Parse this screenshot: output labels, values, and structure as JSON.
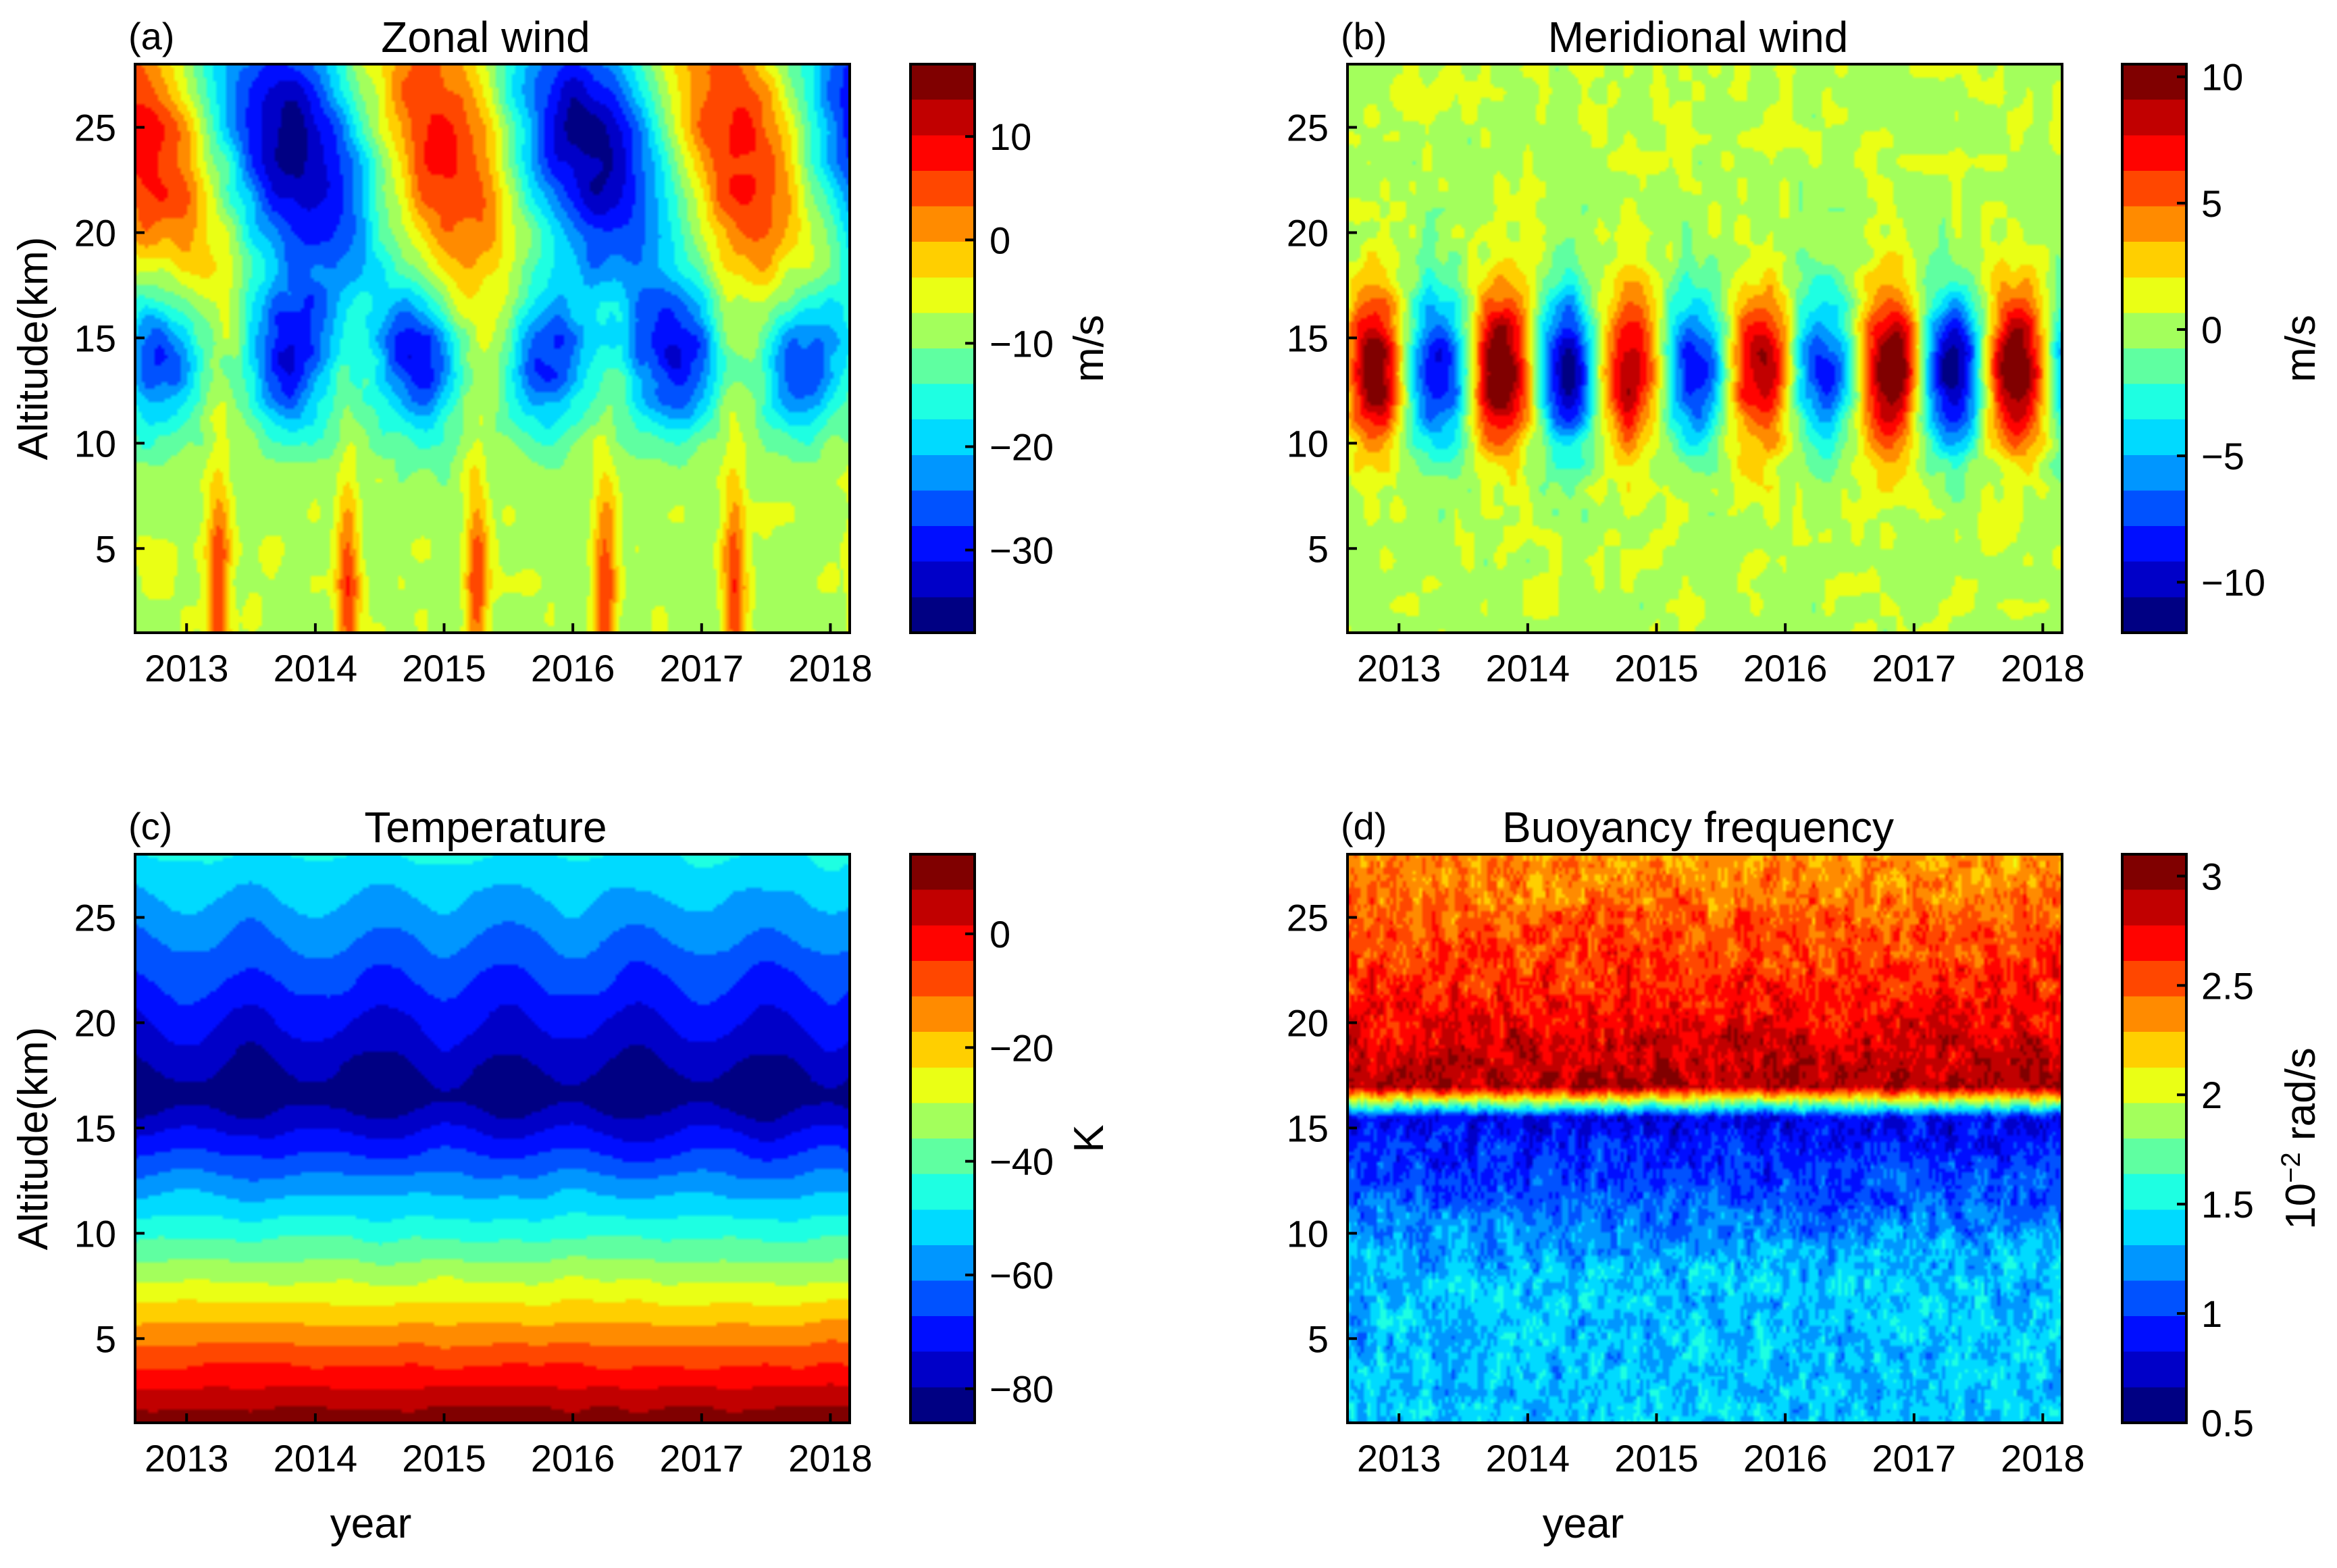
{
  "chart_data": [
    {
      "type": "heatmap",
      "panel_label": "(a)",
      "title": "Zonal wind",
      "xlabel": "",
      "ylabel": "Altitude(km)",
      "x_ticks": [
        "2013",
        "2014",
        "2015",
        "2016",
        "2017",
        "2018"
      ],
      "xlim": [
        2012.6,
        2018.15
      ],
      "y_ticks": [
        5,
        10,
        15,
        20,
        25
      ],
      "ylim": [
        1,
        28
      ],
      "colorbar": {
        "label": "m/s",
        "label_sup": "",
        "label_suffix": "",
        "ticks": [
          10,
          0,
          -10,
          -20,
          -30
        ],
        "tick_labels": [
          "10",
          "0",
          "−10",
          "−20",
          "−30"
        ],
        "range": [
          -38,
          17
        ]
      },
      "field": "zonal",
      "grid": false
    },
    {
      "type": "heatmap",
      "panel_label": "(b)",
      "title": "Meridional wind",
      "xlabel": "",
      "ylabel": "",
      "x_ticks": [
        "2013",
        "2014",
        "2015",
        "2016",
        "2017",
        "2018"
      ],
      "xlim": [
        2012.6,
        2018.15
      ],
      "y_ticks": [
        5,
        10,
        15,
        20,
        25
      ],
      "ylim": [
        1,
        28
      ],
      "colorbar": {
        "label": "m/s",
        "label_sup": "",
        "label_suffix": "",
        "ticks": [
          10,
          5,
          0,
          -5,
          -10
        ],
        "tick_labels": [
          "10",
          "5",
          "0",
          "−5",
          "−10"
        ],
        "range": [
          -12,
          10.5
        ]
      },
      "field": "meridional",
      "grid": false
    },
    {
      "type": "heatmap",
      "panel_label": "(c)",
      "title": "Temperature",
      "xlabel": "year",
      "ylabel": "Altitude(km)",
      "x_ticks": [
        "2013",
        "2014",
        "2015",
        "2016",
        "2017",
        "2018"
      ],
      "xlim": [
        2012.6,
        2018.15
      ],
      "y_ticks": [
        5,
        10,
        15,
        20,
        25
      ],
      "ylim": [
        1,
        28
      ],
      "colorbar": {
        "label": "K",
        "label_sup": "",
        "label_suffix": "",
        "ticks": [
          0,
          -20,
          -40,
          -60,
          -80
        ],
        "tick_labels": [
          "0",
          "−20",
          "−40",
          "−60",
          "−80"
        ],
        "range": [
          -86,
          14
        ]
      },
      "field": "temperature",
      "grid": false
    },
    {
      "type": "heatmap",
      "panel_label": "(d)",
      "title": "Buoyancy frequency",
      "xlabel": "year",
      "ylabel": "",
      "x_ticks": [
        "2013",
        "2014",
        "2015",
        "2016",
        "2017",
        "2018"
      ],
      "xlim": [
        2012.6,
        2018.15
      ],
      "y_ticks": [
        5,
        10,
        15,
        20,
        25
      ],
      "ylim": [
        1,
        28
      ],
      "colorbar": {
        "label": "10",
        "label_sup": "−2",
        "label_suffix": " rad/s",
        "ticks": [
          3,
          2.5,
          2,
          1.5,
          1,
          0.5
        ],
        "tick_labels": [
          "3",
          "2.5",
          "2",
          "1.5",
          "1",
          "0.5"
        ],
        "range": [
          0.5,
          3.1
        ]
      },
      "field": "buoyancy",
      "grid": false
    }
  ]
}
